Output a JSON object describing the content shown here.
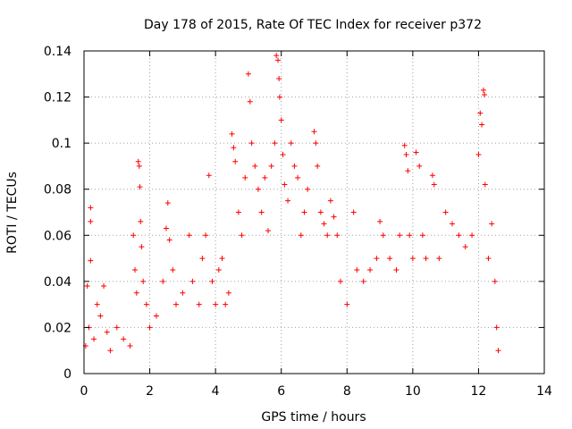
{
  "chart_data": {
    "type": "scatter",
    "title": "Day 178 of 2015, Rate Of TEC Index for receiver p372",
    "xlabel": "GPS time / hours",
    "ylabel": "ROTI / TECUs",
    "xlim": [
      0,
      14
    ],
    "ylim": [
      0,
      0.14
    ],
    "x_ticks": [
      "0",
      "2",
      "4",
      "6",
      "8",
      "10",
      "12",
      "14"
    ],
    "y_ticks": [
      "0",
      "0.02",
      "0.04",
      "0.06",
      "0.08",
      "0.1",
      "0.12",
      "0.14"
    ],
    "x_tick_values": [
      0,
      2,
      4,
      6,
      8,
      10,
      12,
      14
    ],
    "y_tick_values": [
      0,
      0.02,
      0.04,
      0.06,
      0.08,
      0.1,
      0.12,
      0.14
    ],
    "grid": true,
    "marker": "+",
    "marker_color": "#ff0000",
    "series": [
      {
        "name": "ROTI",
        "points": [
          [
            0.05,
            0.012
          ],
          [
            0.1,
            0.038
          ],
          [
            0.15,
            0.02
          ],
          [
            0.2,
            0.072
          ],
          [
            0.2,
            0.066
          ],
          [
            0.2,
            0.049
          ],
          [
            0.3,
            0.015
          ],
          [
            0.4,
            0.03
          ],
          [
            0.5,
            0.025
          ],
          [
            0.6,
            0.038
          ],
          [
            0.7,
            0.018
          ],
          [
            0.8,
            0.01
          ],
          [
            1.0,
            0.02
          ],
          [
            1.2,
            0.015
          ],
          [
            1.4,
            0.012
          ],
          [
            1.5,
            0.06
          ],
          [
            1.55,
            0.045
          ],
          [
            1.6,
            0.035
          ],
          [
            1.65,
            0.092
          ],
          [
            1.68,
            0.09
          ],
          [
            1.7,
            0.081
          ],
          [
            1.72,
            0.066
          ],
          [
            1.75,
            0.055
          ],
          [
            1.8,
            0.04
          ],
          [
            1.9,
            0.03
          ],
          [
            2.0,
            0.02
          ],
          [
            2.2,
            0.025
          ],
          [
            2.4,
            0.04
          ],
          [
            2.5,
            0.063
          ],
          [
            2.55,
            0.074
          ],
          [
            2.6,
            0.058
          ],
          [
            2.7,
            0.045
          ],
          [
            2.8,
            0.03
          ],
          [
            3.0,
            0.035
          ],
          [
            3.2,
            0.06
          ],
          [
            3.3,
            0.04
          ],
          [
            3.5,
            0.03
          ],
          [
            3.6,
            0.05
          ],
          [
            3.7,
            0.06
          ],
          [
            3.8,
            0.086
          ],
          [
            3.9,
            0.04
          ],
          [
            4.0,
            0.03
          ],
          [
            4.1,
            0.045
          ],
          [
            4.2,
            0.05
          ],
          [
            4.3,
            0.03
          ],
          [
            4.4,
            0.035
          ],
          [
            4.5,
            0.104
          ],
          [
            4.55,
            0.098
          ],
          [
            4.6,
            0.092
          ],
          [
            4.7,
            0.07
          ],
          [
            4.8,
            0.06
          ],
          [
            4.9,
            0.085
          ],
          [
            5.0,
            0.13
          ],
          [
            5.05,
            0.118
          ],
          [
            5.1,
            0.1
          ],
          [
            5.2,
            0.09
          ],
          [
            5.3,
            0.08
          ],
          [
            5.4,
            0.07
          ],
          [
            5.5,
            0.085
          ],
          [
            5.6,
            0.062
          ],
          [
            5.7,
            0.09
          ],
          [
            5.8,
            0.1
          ],
          [
            5.85,
            0.138
          ],
          [
            5.9,
            0.136
          ],
          [
            5.93,
            0.128
          ],
          [
            5.95,
            0.12
          ],
          [
            6.0,
            0.11
          ],
          [
            6.05,
            0.095
          ],
          [
            6.1,
            0.082
          ],
          [
            6.2,
            0.075
          ],
          [
            6.3,
            0.1
          ],
          [
            6.4,
            0.09
          ],
          [
            6.5,
            0.085
          ],
          [
            6.6,
            0.06
          ],
          [
            6.7,
            0.07
          ],
          [
            6.8,
            0.08
          ],
          [
            7.0,
            0.105
          ],
          [
            7.05,
            0.1
          ],
          [
            7.1,
            0.09
          ],
          [
            7.2,
            0.07
          ],
          [
            7.3,
            0.065
          ],
          [
            7.4,
            0.06
          ],
          [
            7.5,
            0.075
          ],
          [
            7.6,
            0.068
          ],
          [
            7.7,
            0.06
          ],
          [
            7.8,
            0.04
          ],
          [
            8.0,
            0.03
          ],
          [
            8.2,
            0.07
          ],
          [
            8.3,
            0.045
          ],
          [
            8.5,
            0.04
          ],
          [
            8.7,
            0.045
          ],
          [
            8.9,
            0.05
          ],
          [
            9.0,
            0.066
          ],
          [
            9.1,
            0.06
          ],
          [
            9.3,
            0.05
          ],
          [
            9.5,
            0.045
          ],
          [
            9.6,
            0.06
          ],
          [
            9.75,
            0.099
          ],
          [
            9.8,
            0.095
          ],
          [
            9.85,
            0.088
          ],
          [
            9.9,
            0.06
          ],
          [
            10.0,
            0.05
          ],
          [
            10.1,
            0.096
          ],
          [
            10.2,
            0.09
          ],
          [
            10.3,
            0.06
          ],
          [
            10.4,
            0.05
          ],
          [
            10.6,
            0.086
          ],
          [
            10.65,
            0.082
          ],
          [
            10.8,
            0.05
          ],
          [
            11.0,
            0.07
          ],
          [
            11.2,
            0.065
          ],
          [
            11.4,
            0.06
          ],
          [
            11.6,
            0.055
          ],
          [
            11.8,
            0.06
          ],
          [
            12.0,
            0.095
          ],
          [
            12.05,
            0.113
          ],
          [
            12.1,
            0.108
          ],
          [
            12.15,
            0.123
          ],
          [
            12.18,
            0.121
          ],
          [
            12.2,
            0.082
          ],
          [
            12.3,
            0.05
          ],
          [
            12.4,
            0.065
          ],
          [
            12.5,
            0.04
          ],
          [
            12.55,
            0.02
          ],
          [
            12.6,
            0.01
          ]
        ]
      }
    ]
  }
}
